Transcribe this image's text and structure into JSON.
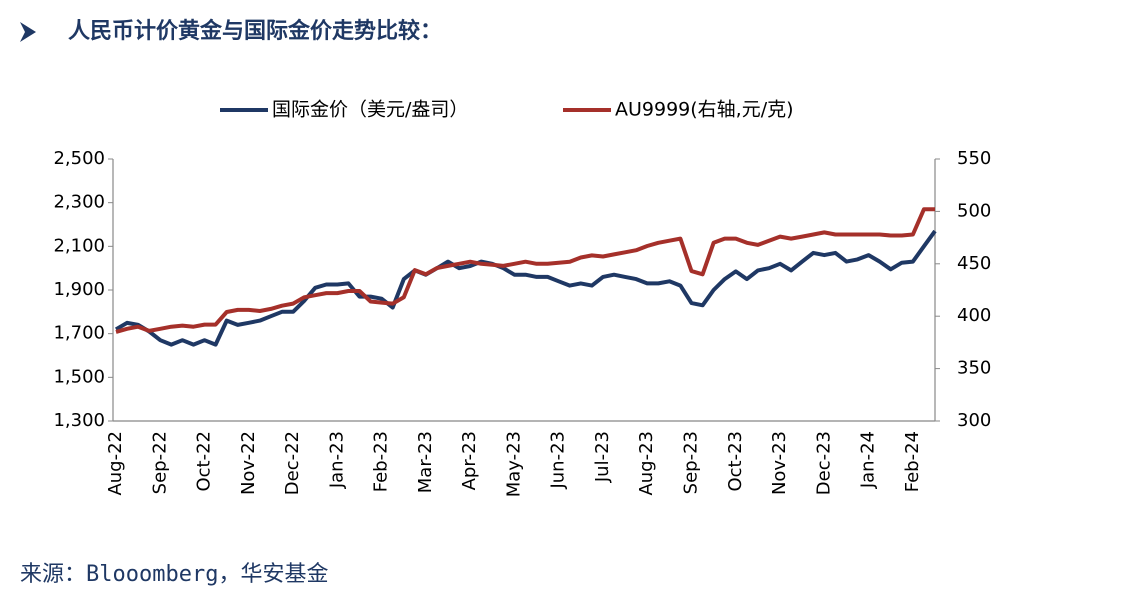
{
  "chart_data": {
    "type": "line",
    "title": "人民币计价黄金与国际金价走势比较：",
    "source": "来源：Blooomberg，华安基金",
    "categories": [
      "Aug-22",
      null,
      null,
      null,
      "Sep-22",
      null,
      null,
      null,
      "Oct-22",
      null,
      null,
      null,
      "Nov-22",
      null,
      null,
      null,
      "Dec-22",
      null,
      null,
      null,
      "Jan-23",
      null,
      null,
      null,
      "Feb-23",
      null,
      null,
      null,
      "Mar-23",
      null,
      null,
      null,
      "Apr-23",
      null,
      null,
      null,
      "May-23",
      null,
      null,
      null,
      "Jun-23",
      null,
      null,
      null,
      "Jul-23",
      null,
      null,
      null,
      "Aug-23",
      null,
      null,
      null,
      "Sep-23",
      null,
      null,
      null,
      "Oct-23",
      null,
      null,
      null,
      "Nov-23",
      null,
      null,
      null,
      "Dec-23",
      null,
      null,
      null,
      "Jan-24",
      null,
      null,
      null,
      "Feb-24",
      null,
      null
    ],
    "series": [
      {
        "name": "国际金价（美元/盎司）",
        "color": "#1f3864",
        "values": [
          1720,
          1750,
          1740,
          1710,
          1670,
          1650,
          1670,
          1650,
          1670,
          1650,
          1760,
          1740,
          1750,
          1760,
          1780,
          1800,
          1800,
          1850,
          1910,
          1925,
          1925,
          1930,
          1870,
          1870,
          1860,
          1820,
          1950,
          1990,
          1970,
          2000,
          2030,
          2000,
          2010,
          2030,
          2020,
          2000,
          1970,
          1970,
          1960,
          1960,
          1940,
          1920,
          1930,
          1920,
          1960,
          1970,
          1960,
          1950,
          1930,
          1930,
          1940,
          1920,
          1840,
          1830,
          1900,
          1950,
          1985,
          1950,
          1990,
          2000,
          2020,
          1990,
          2030,
          2070,
          2060,
          2070,
          2030,
          2040,
          2060,
          2030,
          1995,
          2025,
          2030,
          2100,
          2170
        ]
      },
      {
        "name": "AU9999(右轴,元/克)",
        "color": "#a5302a",
        "axis": "y2",
        "values": [
          385,
          388,
          390,
          386,
          388,
          390,
          391,
          390,
          392,
          392,
          404,
          406,
          406,
          405,
          407,
          410,
          412,
          418,
          420,
          422,
          422,
          424,
          424,
          414,
          413,
          412,
          418,
          444,
          440,
          446,
          448,
          450,
          452,
          450,
          449,
          448,
          450,
          452,
          450,
          450,
          451,
          452,
          456,
          458,
          457,
          459,
          461,
          463,
          467,
          470,
          472,
          474,
          443,
          440,
          470,
          474,
          474,
          470,
          468,
          472,
          476,
          474,
          476,
          478,
          480,
          478,
          478,
          478,
          478,
          478,
          477,
          477,
          478,
          502,
          502
        ]
      }
    ],
    "ylim": [
      1300,
      2500
    ],
    "yticks": [
      {
        "value": 1300,
        "label": "1,300"
      },
      {
        "value": 1500,
        "label": "1,500"
      },
      {
        "value": 1700,
        "label": "1,700"
      },
      {
        "value": 1900,
        "label": "1,900"
      },
      {
        "value": 2100,
        "label": "2,100"
      },
      {
        "value": 2300,
        "label": "2,300"
      },
      {
        "value": 2500,
        "label": "2,500"
      }
    ],
    "y2lim": [
      300,
      550
    ],
    "y2ticks": [
      300,
      350,
      400,
      450,
      500,
      550
    ],
    "legend": "top"
  }
}
